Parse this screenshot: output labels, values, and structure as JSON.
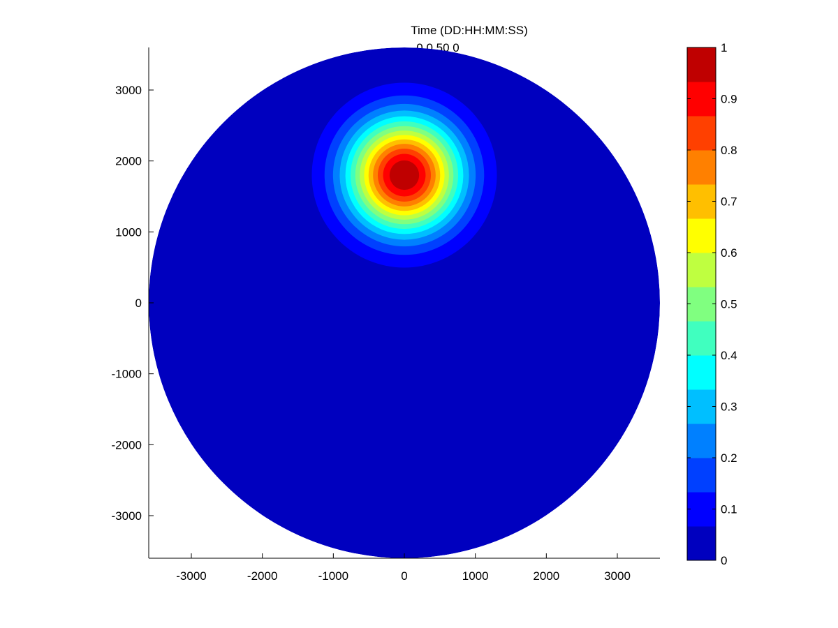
{
  "chart_data": {
    "type": "heatmap",
    "title": "Time (DD:HH:MM:SS)",
    "subtitle": "0 0 50 0",
    "xlabel": "",
    "ylabel": "",
    "xlim": [
      -3600,
      3600
    ],
    "ylim": [
      -3600,
      3600
    ],
    "domain_radius": 3600,
    "xticks": [
      -3000,
      -2000,
      -1000,
      0,
      1000,
      2000,
      3000
    ],
    "yticks": [
      -3000,
      -2000,
      -1000,
      0,
      1000,
      2000,
      3000
    ],
    "grid": false,
    "colormap": "jet",
    "field": {
      "kind": "gaussian-blob",
      "center_x": 0,
      "center_y": 1800,
      "peak_value": 1.0,
      "sigma": 560,
      "background_value": 0.0
    },
    "colorbar": {
      "min": 0,
      "max": 1,
      "levels": 15,
      "ticks": [
        0,
        0.1,
        0.2,
        0.3,
        0.4,
        0.5,
        0.6,
        0.7,
        0.8,
        0.9,
        1
      ],
      "tick_labels": [
        "0",
        "0.1",
        "0.2",
        "0.3",
        "0.4",
        "0.5",
        "0.6",
        "0.7",
        "0.8",
        "0.9",
        "1"
      ],
      "colors": [
        "#0000bf",
        "#0000ff",
        "#0040ff",
        "#0080ff",
        "#00bfff",
        "#00ffff",
        "#40ffbf",
        "#80ff80",
        "#bfff40",
        "#ffff00",
        "#ffbf00",
        "#ff8000",
        "#ff4000",
        "#ff0000",
        "#bf0000"
      ]
    }
  }
}
